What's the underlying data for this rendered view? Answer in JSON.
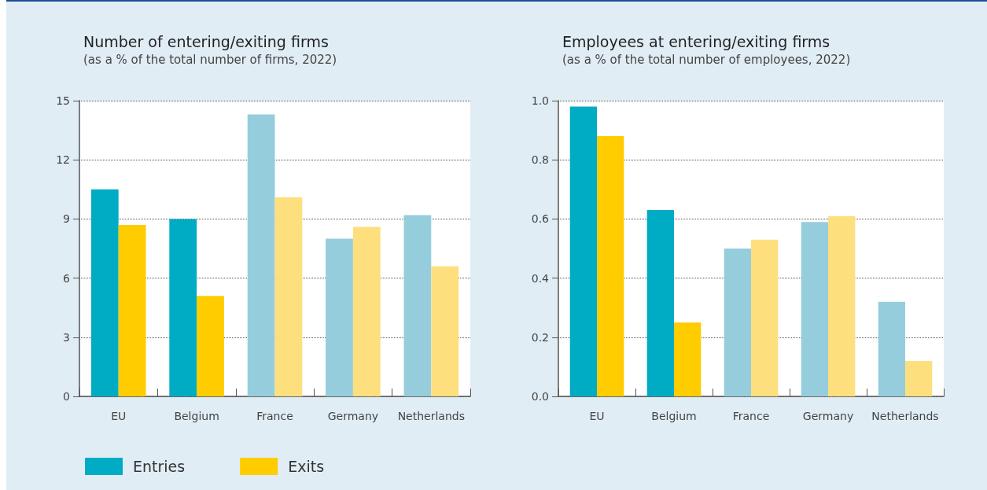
{
  "chart_data": [
    {
      "type": "bar",
      "title": "Number of entering/exiting firms",
      "subtitle": "(as a % of the total number of firms, 2022)",
      "categories": [
        "EU",
        "Belgium",
        "France",
        "Germany",
        "Netherlands"
      ],
      "series": [
        {
          "name": "Entries",
          "color": "#00acc4",
          "colors": [
            "#00acc4",
            "#00acc4",
            "#96cddd",
            "#96cddd",
            "#96cddd"
          ],
          "values": [
            10.5,
            9.0,
            14.3,
            8.0,
            9.2
          ]
        },
        {
          "name": "Exits",
          "color": "#ffcc00",
          "colors": [
            "#ffcc00",
            "#ffcc00",
            "#fddf7e",
            "#fddf7e",
            "#fddf7e"
          ],
          "values": [
            8.7,
            5.1,
            10.1,
            8.6,
            6.6
          ]
        }
      ],
      "ylim": [
        0,
        15
      ],
      "yticks": [
        0,
        3,
        6,
        9,
        12,
        15
      ],
      "grid": "y",
      "legend": "bottom left"
    },
    {
      "type": "bar",
      "title": "Employees at entering/exiting firms",
      "subtitle": "(as a % of the total number of employees, 2022)",
      "categories": [
        "EU",
        "Belgium",
        "France",
        "Germany",
        "Netherlands"
      ],
      "series": [
        {
          "color": "#00acc4",
          "colors": [
            "#00acc4",
            "#00acc4",
            "#96cddd",
            "#96cddd",
            "#96cddd"
          ],
          "values": [
            0.98,
            0.63,
            0.5,
            0.59,
            0.32
          ]
        },
        {
          "color": "#ffcc00",
          "colors": [
            "#ffcc00",
            "#ffcc00",
            "#fddf7e",
            "#fddf7e",
            "#fddf7e"
          ],
          "values": [
            0.88,
            0.25,
            0.53,
            0.61,
            0.12
          ]
        }
      ],
      "ylim": [
        0,
        1.0
      ],
      "yticks": [
        {
          "value": 0,
          "label": "0.0"
        },
        0.2,
        0.4,
        0.6,
        0.8,
        {
          "value": 1,
          "label": "1.0"
        }
      ],
      "grid": "y"
    }
  ]
}
